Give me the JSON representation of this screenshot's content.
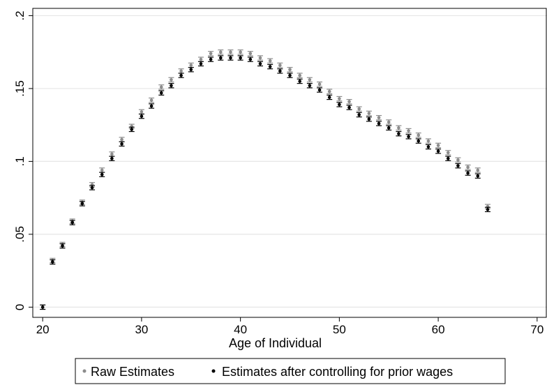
{
  "chart_data": {
    "type": "scatter",
    "title": "",
    "xlabel": "Age of Individual",
    "ylabel": "",
    "xlim": [
      19,
      71
    ],
    "ylim": [
      -0.007,
      0.205
    ],
    "xticks": [
      20,
      30,
      40,
      50,
      60,
      70
    ],
    "xtick_labels": [
      "20",
      "30",
      "40",
      "50",
      "60",
      "70"
    ],
    "yticks": [
      0,
      0.05,
      0.1,
      0.15,
      0.2
    ],
    "ytick_labels": [
      "0",
      ".05",
      ".1",
      ".15",
      ".2"
    ],
    "grid": "horizontal",
    "error_bars": true,
    "legend": "bottom",
    "series": [
      {
        "name": "Raw Estimates",
        "color": "#8c8c8c",
        "marker": "circle",
        "x": [
          20,
          21,
          22,
          23,
          24,
          25,
          26,
          27,
          28,
          29,
          30,
          31,
          32,
          33,
          34,
          35,
          36,
          37,
          38,
          39,
          40,
          41,
          42,
          43,
          44,
          45,
          46,
          47,
          48,
          49,
          50,
          51,
          52,
          53,
          54,
          55,
          56,
          57,
          58,
          59,
          60,
          61,
          62,
          63,
          64,
          65
        ],
        "y": [
          0,
          0.032,
          0.043,
          0.059,
          0.072,
          0.084,
          0.094,
          0.105,
          0.115,
          0.124,
          0.134,
          0.142,
          0.151,
          0.156,
          0.162,
          0.166,
          0.17,
          0.174,
          0.175,
          0.175,
          0.175,
          0.174,
          0.171,
          0.169,
          0.166,
          0.163,
          0.159,
          0.156,
          0.153,
          0.148,
          0.143,
          0.141,
          0.136,
          0.133,
          0.13,
          0.127,
          0.123,
          0.121,
          0.118,
          0.114,
          0.111,
          0.106,
          0.101,
          0.096,
          0.094,
          0.069
        ],
        "ci": 0.0015
      },
      {
        "name": "Estimates after controlling for prior wages",
        "color": "#000000",
        "marker": "circle",
        "x": [
          20,
          21,
          22,
          23,
          24,
          25,
          26,
          27,
          28,
          29,
          30,
          31,
          32,
          33,
          34,
          35,
          36,
          37,
          38,
          39,
          40,
          41,
          42,
          43,
          44,
          45,
          46,
          47,
          48,
          49,
          50,
          51,
          52,
          53,
          54,
          55,
          56,
          57,
          58,
          59,
          60,
          61,
          62,
          63,
          64,
          65
        ],
        "y": [
          0,
          0.031,
          0.042,
          0.058,
          0.071,
          0.082,
          0.091,
          0.102,
          0.112,
          0.122,
          0.131,
          0.138,
          0.147,
          0.152,
          0.159,
          0.163,
          0.167,
          0.17,
          0.171,
          0.171,
          0.171,
          0.17,
          0.167,
          0.165,
          0.162,
          0.159,
          0.155,
          0.152,
          0.149,
          0.144,
          0.139,
          0.137,
          0.132,
          0.129,
          0.126,
          0.123,
          0.119,
          0.117,
          0.114,
          0.11,
          0.107,
          0.102,
          0.097,
          0.092,
          0.09,
          0.067
        ],
        "ci": 0.0015
      }
    ]
  }
}
